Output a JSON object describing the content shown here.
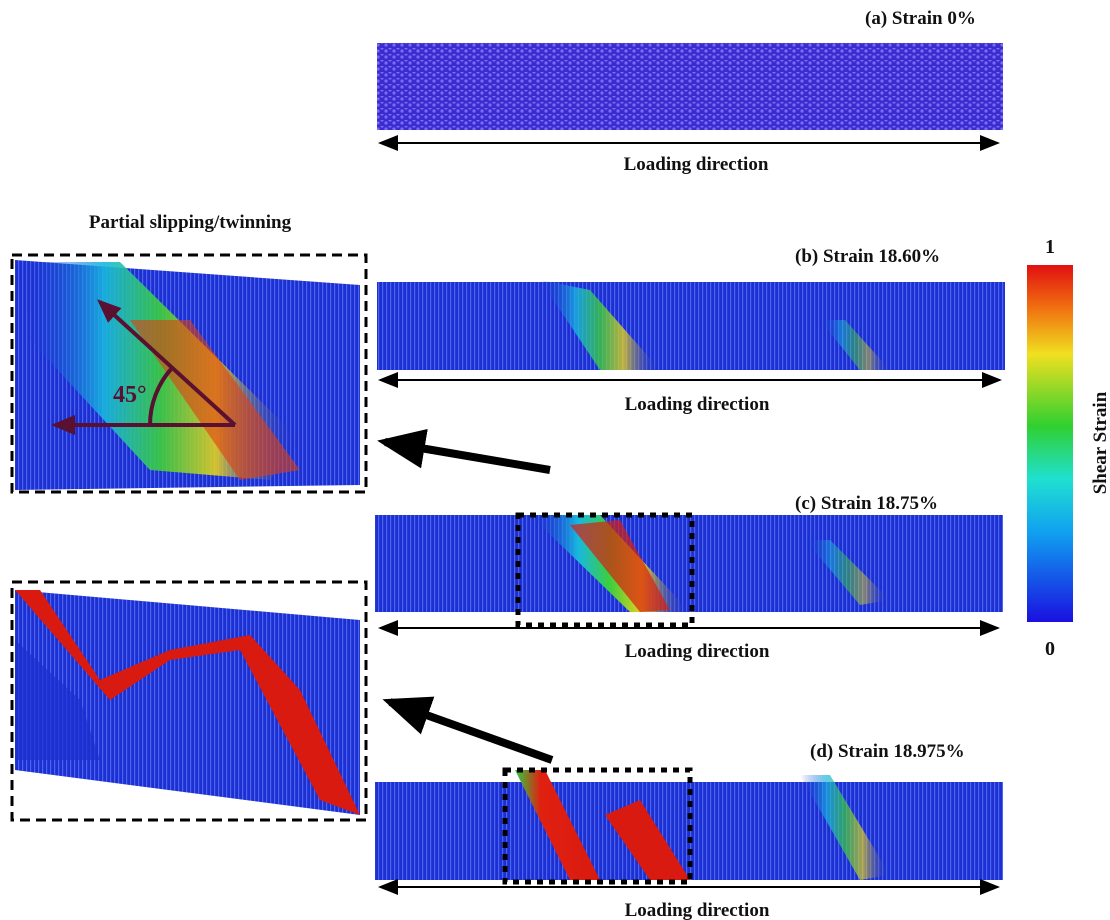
{
  "panels": [
    {
      "label": "(a) Strain 0%",
      "axis_label": "Loading direction"
    },
    {
      "label": "(b) Strain 18.60%",
      "axis_label": "Loading direction"
    },
    {
      "label": "(c) Strain 18.75%",
      "axis_label": "Loading direction"
    },
    {
      "label": "(d) Strain 18.975%",
      "axis_label": "Loading direction"
    }
  ],
  "inset": {
    "title": "Partial slipping/twinning",
    "angle_label": "45°"
  },
  "colorbar": {
    "title": "Shear Strain",
    "max": 1,
    "min": 0
  }
}
